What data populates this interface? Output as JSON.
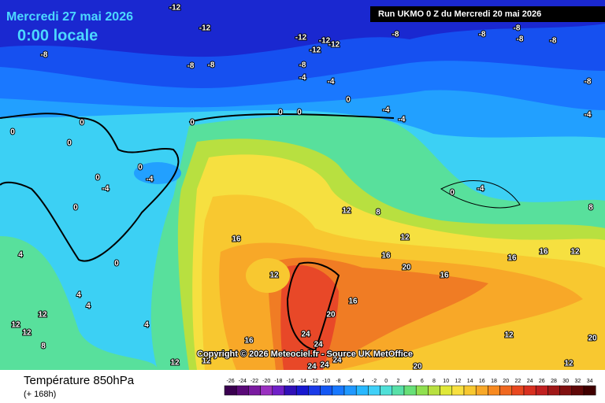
{
  "header": {
    "date": "Mercredi 27 mai 2026",
    "time": "0:00 locale",
    "run": "Run UKMO 0 Z du Mercredi 20 mai 2026"
  },
  "copyright": "Copyright © 2026 Meteociel.fr - Source UK MetOffice",
  "footer": {
    "title": "Température 850hPa",
    "subtitle": "(+ 168h)"
  },
  "scale": {
    "labels": [
      -26,
      -24,
      -22,
      -20,
      -18,
      -16,
      -14,
      -12,
      -10,
      -8,
      -6,
      -4,
      -2,
      0,
      2,
      4,
      6,
      8,
      10,
      12,
      14,
      16,
      18,
      20,
      22,
      24,
      26,
      28,
      30,
      32,
      34
    ],
    "colors": [
      "#3a0050",
      "#5a0a78",
      "#7a1aa0",
      "#9a30c0",
      "#7020c8",
      "#3010b8",
      "#1818d0",
      "#1a3ae8",
      "#1458f4",
      "#1878ff",
      "#2098ff",
      "#28b8ff",
      "#40d0f8",
      "#50e0d8",
      "#58e0a8",
      "#68e078",
      "#90e050",
      "#b8e040",
      "#e0e838",
      "#f8e040",
      "#f8c830",
      "#f8a828",
      "#f88a20",
      "#f06820",
      "#e84820",
      "#d83020",
      "#c02020",
      "#a01818",
      "#801010",
      "#600808",
      "#400000"
    ]
  },
  "map_labels": [
    -12,
    -12,
    -12,
    -12,
    -12,
    -12,
    -8,
    -8,
    -8,
    -8,
    -8,
    -8,
    -8,
    -8,
    -8,
    -4,
    -4,
    -8,
    0,
    -4,
    -4,
    -4,
    0,
    0,
    0,
    0,
    0,
    0,
    0,
    -4,
    0,
    -4,
    0,
    4,
    0,
    16,
    12,
    12,
    8,
    12,
    16,
    20,
    16,
    0,
    -4,
    8,
    12,
    16,
    16,
    4,
    4,
    12,
    12,
    12,
    4,
    8,
    16,
    16,
    20,
    24,
    24,
    24,
    24,
    24,
    20,
    12,
    12,
    12,
    12,
    20
  ]
}
